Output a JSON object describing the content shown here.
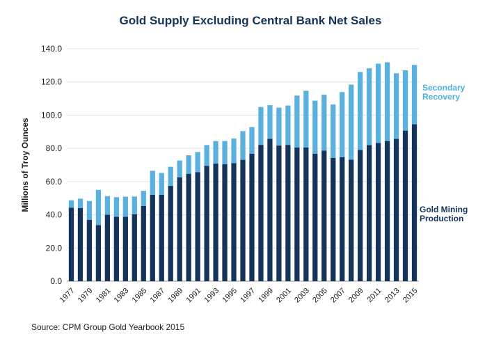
{
  "chart_data": {
    "type": "bar",
    "stacked": true,
    "title": "Gold Supply Excluding Central Bank Net Sales",
    "xlabel": "",
    "ylabel": "Millions of Troy Ounces",
    "ylim": [
      0,
      140
    ],
    "yticks": [
      "0.0",
      "20.0",
      "40.0",
      "60.0",
      "80.0",
      "100.0",
      "120.0",
      "140.0"
    ],
    "grid": true,
    "categories": [
      "1977",
      "1978",
      "1979",
      "1980",
      "1981",
      "1982",
      "1983",
      "1984",
      "1985",
      "1986",
      "1987",
      "1988",
      "1989",
      "1990",
      "1991",
      "1992",
      "1993",
      "1994",
      "1995",
      "1996",
      "1997",
      "1998",
      "1999",
      "2000",
      "2001",
      "2002",
      "2003",
      "2004",
      "2005",
      "2006",
      "2007",
      "2008",
      "2009",
      "2010",
      "2011",
      "2012",
      "2013",
      "2014",
      "2015"
    ],
    "xtick_labels": [
      "1977",
      "",
      "1979",
      "",
      "1981",
      "",
      "1983",
      "",
      "1985",
      "",
      "1987",
      "",
      "1989",
      "",
      "1991",
      "",
      "1993",
      "",
      "1995",
      "",
      "1997",
      "",
      "1999",
      "",
      "2001",
      "",
      "2003",
      "",
      "2005",
      "",
      "2007",
      "",
      "2009",
      "",
      "2011",
      "",
      "2013",
      "",
      "2015"
    ],
    "series": [
      {
        "name": "Gold Mining Production",
        "legend_lines": [
          "Gold Mining",
          "Production"
        ],
        "color": "#14345a",
        "values": [
          44.3,
          44.0,
          37.0,
          33.8,
          40.0,
          38.8,
          38.8,
          40.3,
          45.3,
          52.0,
          52.1,
          57.4,
          62.6,
          64.7,
          65.7,
          69.5,
          70.8,
          70.4,
          71.1,
          73.1,
          76.8,
          82.1,
          85.7,
          81.7,
          82.1,
          80.5,
          80.6,
          76.8,
          78.6,
          74.3,
          74.7,
          73.2,
          79.0,
          82.0,
          83.2,
          84.4,
          85.7,
          90.7,
          94.5
        ]
      },
      {
        "name": "Secondary Recovery",
        "legend_lines": [
          "Secondary",
          "Recovery"
        ],
        "color": "#5ab1df",
        "values": [
          4.4,
          5.7,
          11.3,
          21.2,
          11.2,
          11.8,
          12.1,
          10.7,
          9.1,
          14.5,
          13.1,
          11.5,
          10.1,
          11.1,
          12.1,
          12.5,
          13.6,
          14.0,
          14.8,
          17.3,
          16.0,
          22.8,
          20.3,
          22.8,
          23.7,
          31.3,
          34.1,
          31.9,
          33.7,
          32.1,
          39.2,
          45.2,
          47.0,
          46.2,
          47.8,
          47.4,
          39.5,
          36.3,
          35.8
        ]
      }
    ]
  },
  "source": "Source: CPM Group Gold Yearbook 2015"
}
